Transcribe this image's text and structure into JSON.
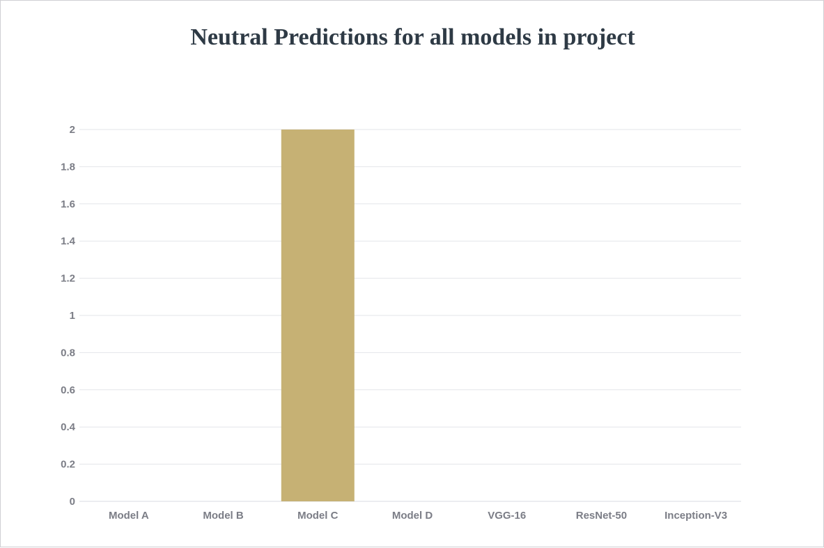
{
  "chart_data": {
    "type": "bar",
    "title": "Neutral Predictions for all models in project",
    "xlabel": "",
    "ylabel": "",
    "categories": [
      "Model A",
      "Model B",
      "Model C",
      "Model D",
      "VGG-16",
      "ResNet-50",
      "Inception-V3"
    ],
    "values": [
      0,
      0,
      2,
      0,
      0,
      0,
      0
    ],
    "ylim": [
      0,
      2
    ],
    "yticks": [
      "0",
      "0.2",
      "0.4",
      "0.6",
      "0.8",
      "1",
      "1.2",
      "1.4",
      "1.6",
      "1.8",
      "2"
    ],
    "bar_color": "#c6b174",
    "grid": true,
    "legend": "none"
  }
}
